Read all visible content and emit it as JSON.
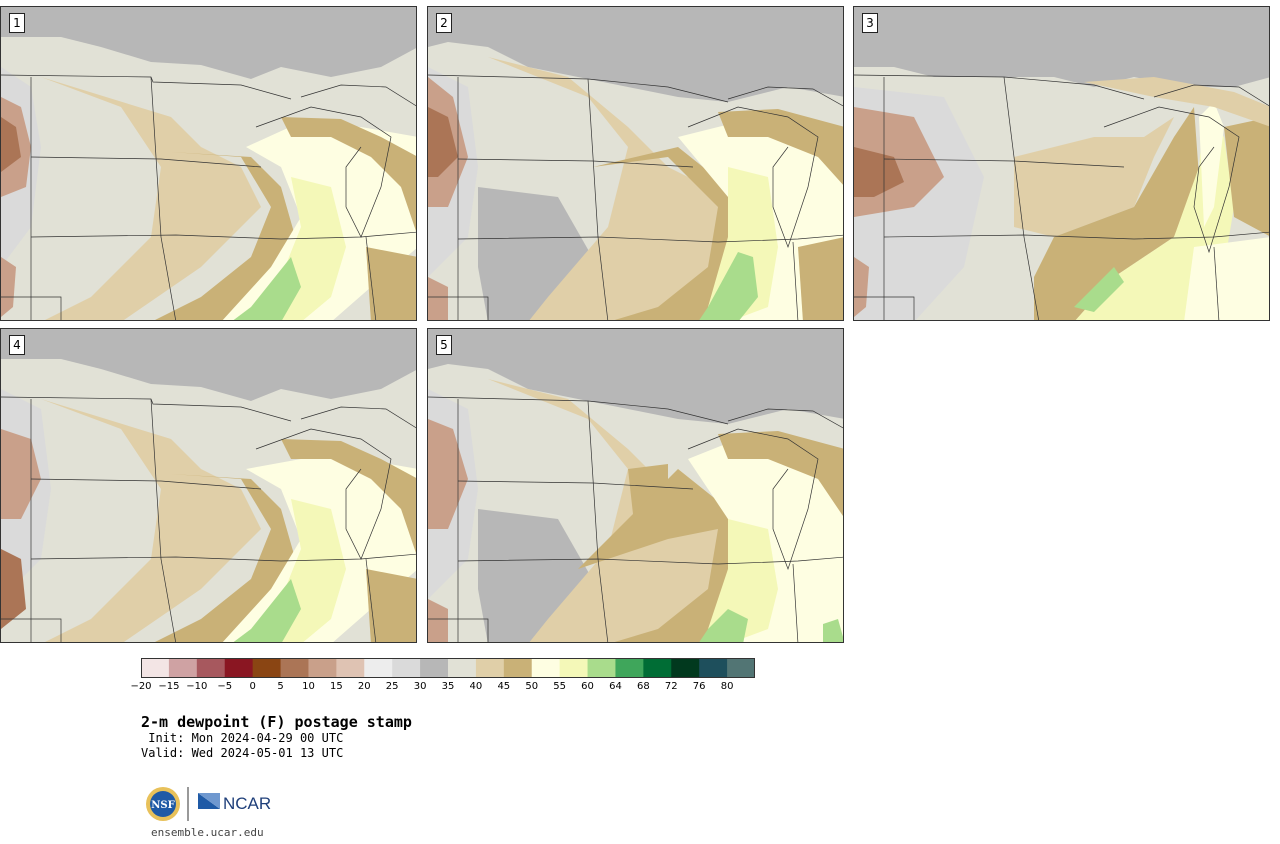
{
  "panels": [
    {
      "label": "1"
    },
    {
      "label": "2"
    },
    {
      "label": "3"
    },
    {
      "label": "4"
    },
    {
      "label": "5"
    }
  ],
  "colorbar": {
    "ticks": [
      "−20",
      "−15",
      "−10",
      "−5",
      "0",
      "5",
      "10",
      "15",
      "20",
      "25",
      "30",
      "35",
      "40",
      "45",
      "50",
      "55",
      "60",
      "64",
      "68",
      "72",
      "76",
      "80"
    ],
    "colors": [
      "#f3e5e5",
      "#cfa2a3",
      "#a7585e",
      "#8a1622",
      "#8a4513",
      "#ab7556",
      "#c9a08a",
      "#dfc3b3",
      "#ededed",
      "#dadada",
      "#b7b7b7",
      "#e1e1d6",
      "#e0cfa8",
      "#c9b177",
      "#fefee2",
      "#f4f8b8",
      "#a9dc8c",
      "#3fa65b",
      "#006d35",
      "#01391e",
      "#1e4f5c",
      "#527574"
    ]
  },
  "title": "2-m dewpoint (F) postage stamp",
  "init": " Init: Mon 2024-04-29 00 UTC",
  "valid": "Valid: Wed 2024-05-01 13 UTC",
  "logos": {
    "nsf": "NSF",
    "ncar": "NCAR"
  },
  "footer_url": "ensemble.ucar.edu"
}
